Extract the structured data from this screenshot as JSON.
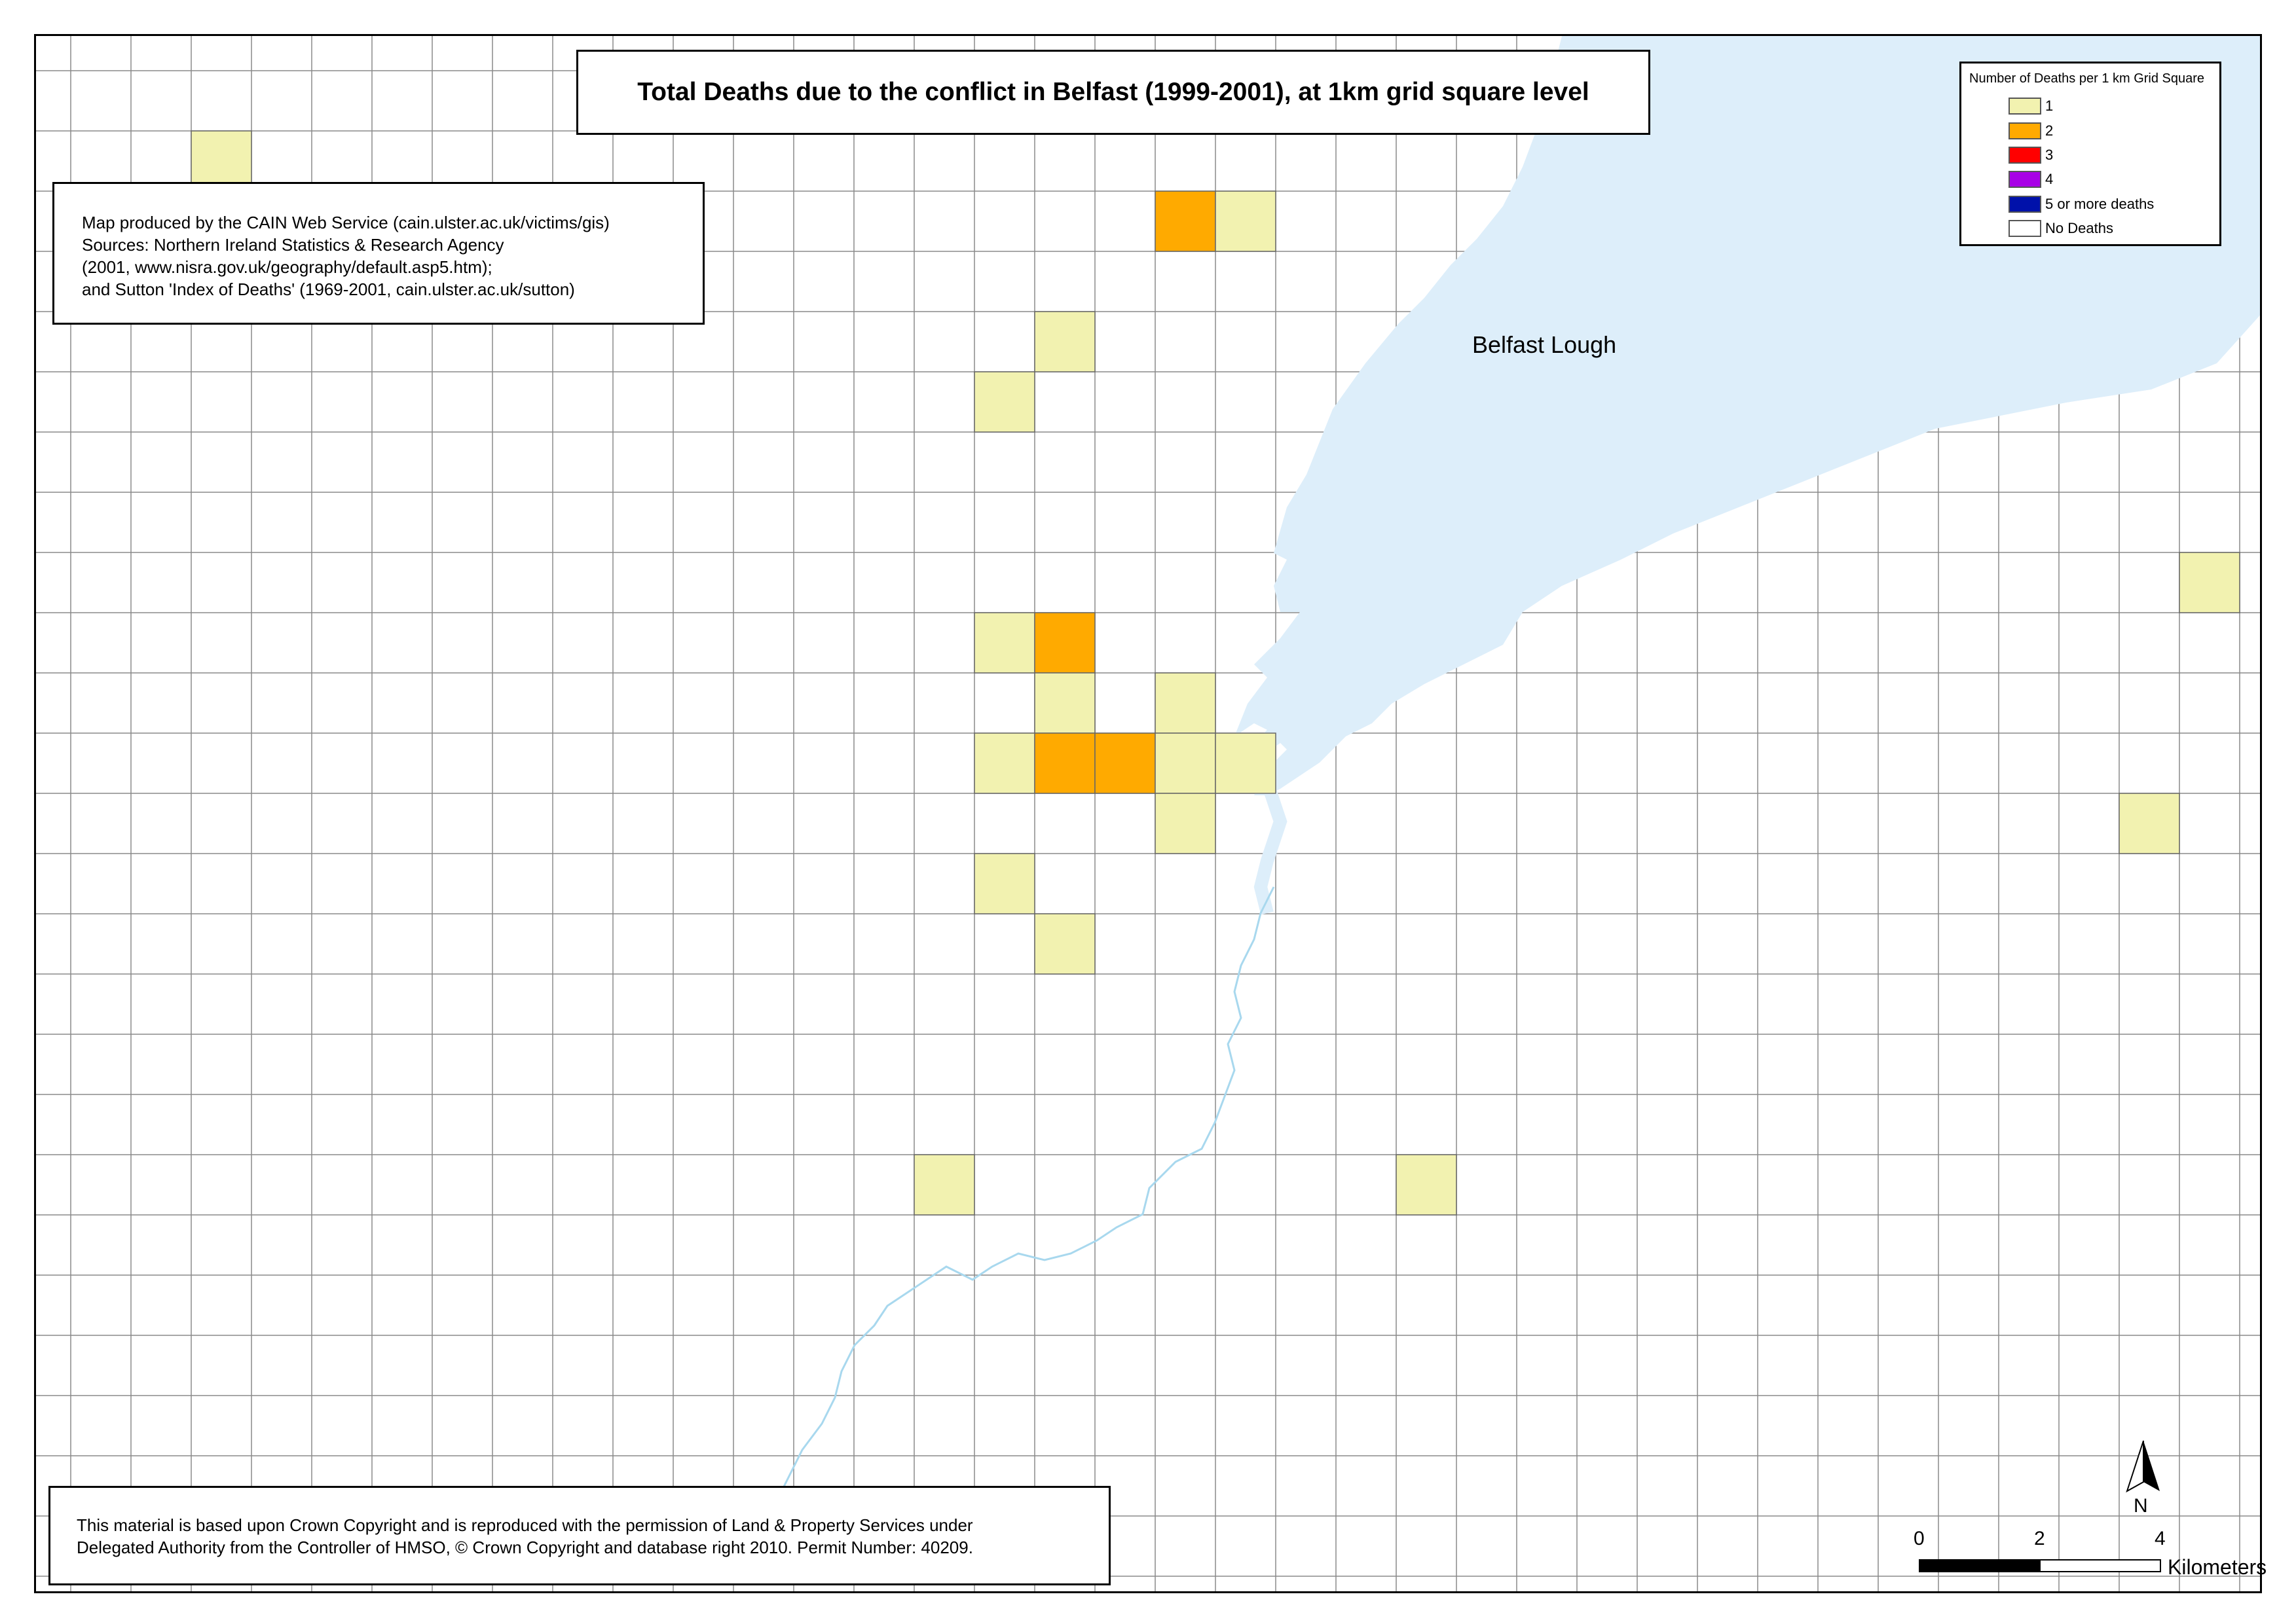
{
  "map": {
    "title": "Total Deaths due to the conflict in Belfast (1999-2001), at 1km grid square level",
    "water_label": "Belfast Lough",
    "source_lines": [
      "Map produced by the CAIN Web Service (cain.ulster.ac.uk/victims/gis)",
      "Sources: Northern Ireland Statistics & Research Agency",
      "(2001, www.nisra.gov.uk/geography/default.asp5.htm);",
      "and Sutton 'Index of Deaths' (1969-2001, cain.ulster.ac.uk/sutton)"
    ],
    "copyright_lines": [
      "This material is based upon Crown Copyright and is reproduced with the permission of Land & Property Services under",
      "Delegated Authority from the Controller of HMSO, © Crown Copyright and database right 2010. Permit Number: 40209."
    ],
    "north_label": "N",
    "scale": {
      "ticks": [
        "0",
        "2",
        "4"
      ],
      "unit": "Kilometers"
    }
  },
  "legend": {
    "title": "Number of Deaths per 1 km Grid Square",
    "items": [
      {
        "label": "1",
        "color": "#F2F2B0",
        "deaths": 1
      },
      {
        "label": "2",
        "color": "#FFAA00",
        "deaths": 2
      },
      {
        "label": "3",
        "color": "#FF0000",
        "deaths": 3
      },
      {
        "label": "4",
        "color": "#A800E6",
        "deaths": 4
      },
      {
        "label": "5 or more deaths",
        "color": "#0011AA",
        "deaths": 5
      },
      {
        "label": "No Deaths",
        "color": "#FFFFFF",
        "deaths": 0
      }
    ]
  },
  "grid_cells": [
    {
      "col": 3,
      "row": 2,
      "deaths": 1
    },
    {
      "col": 19,
      "row": 3,
      "deaths": 2
    },
    {
      "col": 20,
      "row": 3,
      "deaths": 1
    },
    {
      "col": 17,
      "row": 5,
      "deaths": 1
    },
    {
      "col": 16,
      "row": 6,
      "deaths": 1
    },
    {
      "col": 36,
      "row": 9,
      "deaths": 1
    },
    {
      "col": 16,
      "row": 10,
      "deaths": 1
    },
    {
      "col": 17,
      "row": 10,
      "deaths": 2
    },
    {
      "col": 17,
      "row": 11,
      "deaths": 1
    },
    {
      "col": 19,
      "row": 11,
      "deaths": 1
    },
    {
      "col": 16,
      "row": 12,
      "deaths": 1
    },
    {
      "col": 17,
      "row": 12,
      "deaths": 2
    },
    {
      "col": 18,
      "row": 12,
      "deaths": 2
    },
    {
      "col": 19,
      "row": 12,
      "deaths": 1
    },
    {
      "col": 20,
      "row": 12,
      "deaths": 1
    },
    {
      "col": 19,
      "row": 13,
      "deaths": 1
    },
    {
      "col": 35,
      "row": 13,
      "deaths": 1
    },
    {
      "col": 16,
      "row": 14,
      "deaths": 1
    },
    {
      "col": 17,
      "row": 15,
      "deaths": 1
    },
    {
      "col": 15,
      "row": 19,
      "deaths": 1
    },
    {
      "col": 23,
      "row": 19,
      "deaths": 1
    }
  ]
}
